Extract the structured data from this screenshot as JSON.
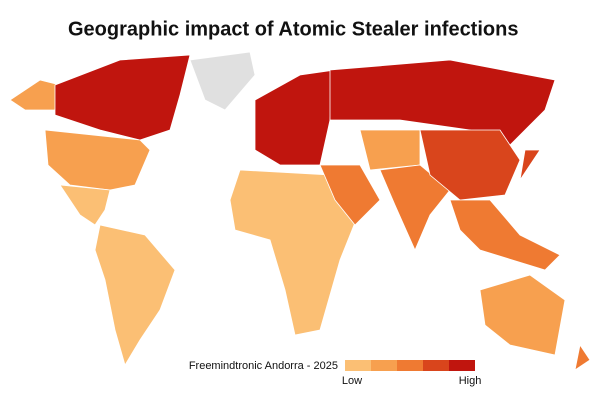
{
  "title": "Geographic impact of Atomic Stealer infections",
  "legend": {
    "source": "Freemindtronic Andorra - 2025",
    "low": "Low",
    "high": "High",
    "colors": [
      "#fbbf74",
      "#f7a04f",
      "#ef7a32",
      "#d9451c",
      "#c0150e"
    ]
  }
}
